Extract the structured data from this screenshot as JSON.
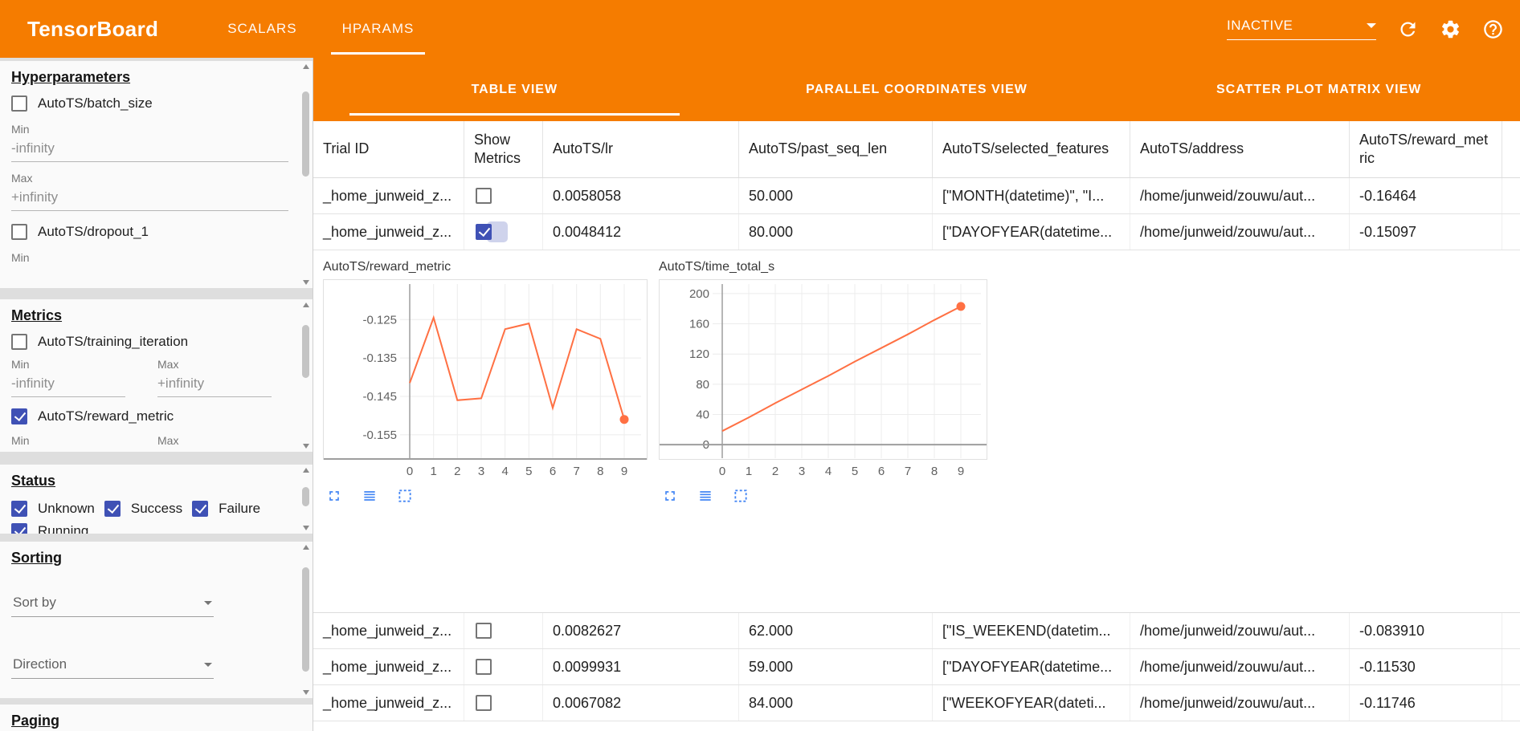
{
  "colors": {
    "accent_orange": "#f57c00",
    "checkbox_blue": "#3f51b5",
    "icon_blue": "#4285f4",
    "line_orange": "#ff7043"
  },
  "toolbar": {
    "title": "TensorBoard",
    "tabs": [
      {
        "label": "SCALARS",
        "active": false
      },
      {
        "label": "HPARAMS",
        "active": true
      }
    ],
    "run_status": "INACTIVE"
  },
  "sidebar": {
    "hyperparameters": {
      "title": "Hyperparameters",
      "items": [
        {
          "label": "AutoTS/batch_size",
          "checked": false,
          "min_label": "Min",
          "min_value": "-infinity",
          "max_label": "Max",
          "max_value": "+infinity"
        },
        {
          "label": "AutoTS/dropout_1",
          "checked": false,
          "min_label": "Min"
        }
      ]
    },
    "metrics": {
      "title": "Metrics",
      "items": [
        {
          "label": "AutoTS/training_iteration",
          "checked": false,
          "min_label": "Min",
          "min_value": "-infinity",
          "max_label": "Max",
          "max_value": "+infinity"
        },
        {
          "label": "AutoTS/reward_metric",
          "checked": true,
          "min_label": "Min",
          "max_label": "Max"
        }
      ]
    },
    "status": {
      "title": "Status",
      "items": [
        {
          "label": "Unknown",
          "checked": true
        },
        {
          "label": "Success",
          "checked": true
        },
        {
          "label": "Failure",
          "checked": true
        },
        {
          "label": "Running",
          "checked": true
        }
      ]
    },
    "sorting": {
      "title": "Sorting",
      "sort_by_placeholder": "Sort by",
      "direction_placeholder": "Direction"
    },
    "paging": {
      "title": "Paging"
    }
  },
  "main": {
    "view_tabs": [
      {
        "label": "TABLE VIEW",
        "active": true
      },
      {
        "label": "PARALLEL COORDINATES VIEW",
        "active": false
      },
      {
        "label": "SCATTER PLOT MATRIX VIEW",
        "active": false
      }
    ],
    "table": {
      "columns": [
        "Trial ID",
        "Show Metrics",
        "AutoTS/lr",
        "AutoTS/past_seq_len",
        "AutoTS/selected_features",
        "AutoTS/address",
        "AutoTS/reward_metric"
      ],
      "rows": [
        {
          "trial_id": "_home_junweid_z...",
          "show_metrics": false,
          "lr": "0.0058058",
          "past_seq_len": "50.000",
          "selected_features": "[\"MONTH(datetime)\", \"I...",
          "address": "/home/junweid/zouwu/aut...",
          "reward_metric": "-0.16464"
        },
        {
          "trial_id": "_home_junweid_z...",
          "show_metrics": true,
          "lr": "0.0048412",
          "past_seq_len": "80.000",
          "selected_features": "[\"DAYOFYEAR(datetime...",
          "address": "/home/junweid/zouwu/aut...",
          "reward_metric": "-0.15097"
        },
        {
          "trial_id": "_home_junweid_z...",
          "show_metrics": false,
          "lr": "0.0082627",
          "past_seq_len": "62.000",
          "selected_features": "[\"IS_WEEKEND(datetim...",
          "address": "/home/junweid/zouwu/aut...",
          "reward_metric": "-0.083910"
        },
        {
          "trial_id": "_home_junweid_z...",
          "show_metrics": false,
          "lr": "0.0099931",
          "past_seq_len": "59.000",
          "selected_features": "[\"DAYOFYEAR(datetime...",
          "address": "/home/junweid/zouwu/aut...",
          "reward_metric": "-0.11530"
        },
        {
          "trial_id": "_home_junweid_z...",
          "show_metrics": false,
          "lr": "0.0067082",
          "past_seq_len": "84.000",
          "selected_features": "[\"WEEKOFYEAR(dateti...",
          "address": "/home/junweid/zouwu/aut...",
          "reward_metric": "-0.11746"
        }
      ]
    }
  },
  "chart_data": [
    {
      "type": "line",
      "title": "AutoTS/reward_metric",
      "x": [
        0,
        1,
        2,
        3,
        4,
        5,
        6,
        7,
        8,
        9
      ],
      "values": [
        -0.1415,
        -0.1245,
        -0.146,
        -0.1455,
        -0.1275,
        -0.126,
        -0.148,
        -0.1275,
        -0.13,
        -0.151
      ],
      "yticks": [
        -0.125,
        -0.135,
        -0.145,
        -0.155
      ],
      "ylim": [
        -0.1615,
        -0.1145
      ],
      "xticks": [
        0,
        1,
        2,
        3,
        4,
        5,
        6,
        7,
        8,
        9
      ],
      "xlabel": "",
      "ylabel": "",
      "grid": true,
      "legend_position": "none",
      "endpoint_marker": true,
      "baseline": "bottom"
    },
    {
      "type": "line",
      "title": "AutoTS/time_total_s",
      "x": [
        0,
        1,
        2,
        3,
        4,
        5,
        6,
        7,
        8,
        9
      ],
      "values": [
        18,
        36,
        55,
        73,
        91,
        110,
        128,
        146,
        165,
        183
      ],
      "yticks": [
        0,
        40,
        80,
        120,
        160,
        200
      ],
      "ylim": [
        -20,
        219
      ],
      "xticks": [
        0,
        1,
        2,
        3,
        4,
        5,
        6,
        7,
        8,
        9
      ],
      "xlabel": "",
      "ylabel": "",
      "grid": true,
      "legend_position": "none",
      "endpoint_marker": true,
      "baseline": "zero"
    }
  ]
}
